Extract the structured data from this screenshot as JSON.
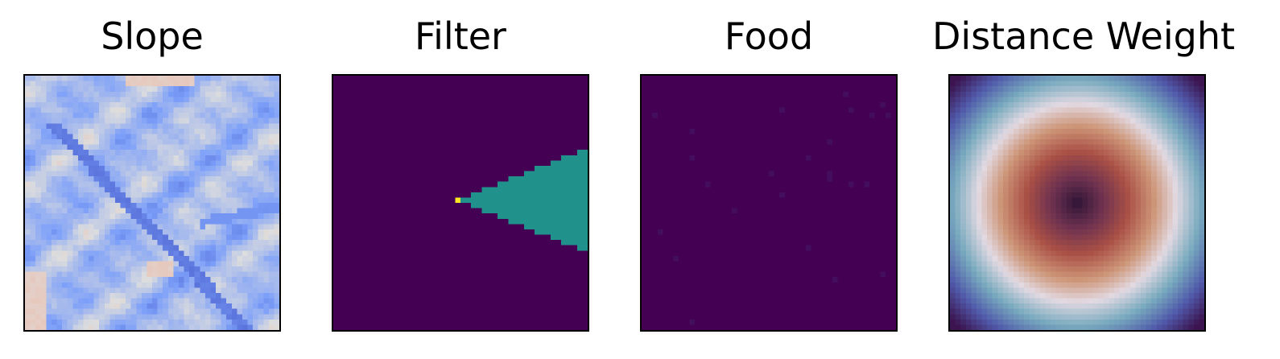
{
  "chart_data": [
    {
      "type": "heatmap",
      "title": "Slope",
      "colormap": "coolwarm",
      "grid_size": 48,
      "axes_visible": false,
      "content": "blue-dominated terrain slope map with a dark diagonal ridge line from top-left to bottom-right and a few warm patches near the edges"
    },
    {
      "type": "heatmap",
      "title": "Filter",
      "colormap": "viridis",
      "grid_size": 48,
      "axes_visible": false,
      "background_value": 0,
      "content": "teal wedge (cone) pointing left, apex near the center with a single yellow cell at the apex, widening toward the right edge",
      "apex_cell": [
        23,
        23
      ],
      "apex_value": 1.0,
      "wedge_value": 0.5
    },
    {
      "type": "heatmap",
      "title": "Food",
      "colormap": "viridis",
      "grid_size": 48,
      "axes_visible": false,
      "background_value": 0,
      "content": "almost uniform dark purple with sparse faint food cells"
    },
    {
      "type": "heatmap",
      "title": "Distance Weight",
      "colormap": "twilight_shifted",
      "grid_size": 48,
      "axes_visible": false,
      "content": "radial pattern: dark center, red/orange ring, white ring, blue-teal ring, purple corners"
    }
  ]
}
